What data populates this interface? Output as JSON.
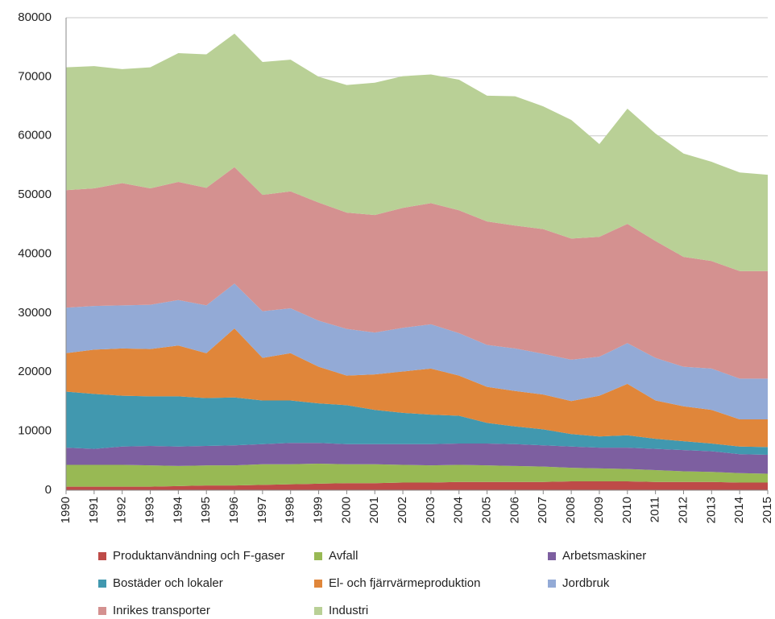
{
  "chart_data": {
    "type": "stacked_area",
    "categories": [
      "1990",
      "1991",
      "1992",
      "1993",
      "1994",
      "1995",
      "1996",
      "1997",
      "1998",
      "1999",
      "2000",
      "2001",
      "2002",
      "2003",
      "2004",
      "2005",
      "2006",
      "2007",
      "2008",
      "2009",
      "2010",
      "2011",
      "2012",
      "2013",
      "2014",
      "2015"
    ],
    "series": [
      {
        "name": "Produktanvändning och F-gaser",
        "color": "#be4b48",
        "values": [
          600,
          600,
          600,
          600,
          700,
          800,
          800,
          900,
          1000,
          1100,
          1200,
          1200,
          1300,
          1300,
          1400,
          1400,
          1400,
          1400,
          1500,
          1500,
          1500,
          1400,
          1400,
          1400,
          1300,
          1300
        ]
      },
      {
        "name": "Avfall",
        "color": "#98b954",
        "values": [
          3700,
          3700,
          3700,
          3600,
          3400,
          3400,
          3400,
          3500,
          3400,
          3400,
          3200,
          3200,
          3000,
          2900,
          2900,
          2800,
          2700,
          2600,
          2300,
          2200,
          2100,
          2000,
          1800,
          1700,
          1600,
          1500
        ]
      },
      {
        "name": "Arbetsmaskiner",
        "color": "#7d5fa0",
        "values": [
          2900,
          2700,
          3100,
          3300,
          3300,
          3300,
          3400,
          3400,
          3600,
          3500,
          3400,
          3400,
          3500,
          3600,
          3600,
          3700,
          3700,
          3600,
          3600,
          3500,
          3600,
          3600,
          3600,
          3500,
          3200,
          3200
        ]
      },
      {
        "name": "Bostäder och lokaler",
        "color": "#4198af",
        "values": [
          9500,
          9300,
          8600,
          8400,
          8500,
          8100,
          8100,
          7400,
          7200,
          6700,
          6600,
          5800,
          5300,
          5000,
          4700,
          3500,
          3000,
          2700,
          2100,
          1900,
          2100,
          1700,
          1500,
          1300,
          1300,
          1300
        ]
      },
      {
        "name": "El- och fjärrvärmeproduktion",
        "color": "#e0863a",
        "values": [
          6500,
          7500,
          8000,
          8000,
          8600,
          7600,
          11700,
          7200,
          8000,
          6200,
          5000,
          6000,
          7000,
          7800,
          6800,
          6100,
          6000,
          5900,
          5600,
          6900,
          8700,
          6500,
          5900,
          5700,
          4600,
          4700
        ]
      },
      {
        "name": "Jordbruk",
        "color": "#93aad6",
        "values": [
          7700,
          7400,
          7300,
          7500,
          7700,
          8100,
          7600,
          7900,
          7600,
          7800,
          7900,
          7100,
          7400,
          7500,
          7200,
          7100,
          7200,
          6900,
          7000,
          6600,
          6900,
          7200,
          6700,
          7000,
          6900,
          6900
        ]
      },
      {
        "name": "Inrikes transporter",
        "color": "#d49190",
        "values": [
          19900,
          19900,
          20700,
          19700,
          20000,
          19900,
          19700,
          19700,
          19800,
          20000,
          19700,
          19900,
          20300,
          20500,
          20800,
          20900,
          20800,
          21100,
          20500,
          20300,
          20200,
          19800,
          18600,
          18200,
          18200,
          18200
        ]
      },
      {
        "name": "Industri",
        "color": "#b9d096",
        "values": [
          20800,
          20700,
          19300,
          20500,
          21800,
          22600,
          22600,
          22500,
          22300,
          21300,
          21600,
          22400,
          22300,
          21800,
          22100,
          21300,
          21900,
          20800,
          20100,
          15700,
          19500,
          18200,
          17500,
          16800,
          16700,
          16300
        ]
      }
    ],
    "ylim": [
      0,
      80000
    ],
    "yticks": [
      0,
      10000,
      20000,
      30000,
      40000,
      50000,
      60000,
      70000,
      80000
    ],
    "grid": true
  }
}
